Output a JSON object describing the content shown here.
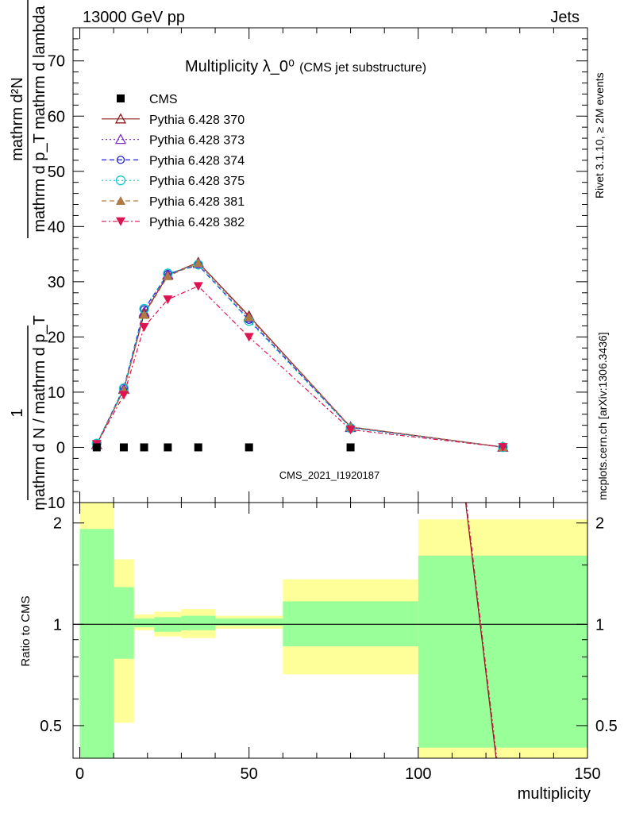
{
  "header": {
    "left": "13000 GeV pp",
    "right": "Jets"
  },
  "title": {
    "main": "Multiplicity λ_0⁰",
    "sub": "(CMS jet substructure)"
  },
  "watermark": {
    "analysis": "CMS_2021_I1920187",
    "rivet": "Rivet 3.1.10, ≥ 2M events",
    "mcplots": "mcplots.cern.ch [arXiv:1306.3436]"
  },
  "ylabel_main": {
    "numerator": "mathrm d²N",
    "denominator": "mathrm d p_T mathrm d lambda",
    "prefix_num": "1",
    "prefix_den": "mathrm d N / mathrm d p_T"
  },
  "ylabel_ratio": "Ratio to CMS",
  "xlabel": "multiplicity",
  "legend": [
    {
      "name": "CMS",
      "color": "#000000",
      "marker": "square-filled",
      "dash": "none"
    },
    {
      "name": "Pythia 6.428 370",
      "color": "#8b1a1a",
      "marker": "triangle-open",
      "dash": "solid"
    },
    {
      "name": "Pythia 6.428 373",
      "color": "#7b2fbe",
      "marker": "triangle-open",
      "dash": "dotted"
    },
    {
      "name": "Pythia 6.428 374",
      "color": "#1f1fd6",
      "marker": "circle-open",
      "dash": "dashed"
    },
    {
      "name": "Pythia 6.428 375",
      "color": "#14c8c8",
      "marker": "circle-open",
      "dash": "dotted"
    },
    {
      "name": "Pythia 6.428 381",
      "color": "#b07a45",
      "marker": "triangle-filled",
      "dash": "dashed"
    },
    {
      "name": "Pythia 6.428 382",
      "color": "#dc1450",
      "marker": "triangledown-filled",
      "dash": "dashdot"
    }
  ],
  "chart_data": [
    {
      "type": "line",
      "panel": "main",
      "xlim": [
        -2,
        150
      ],
      "ylim": [
        -10,
        76
      ],
      "yticks": [
        -10,
        0,
        10,
        20,
        30,
        40,
        50,
        60,
        70
      ],
      "grid": false,
      "legend_position": "top-left",
      "cms": {
        "x": [
          5,
          13,
          19,
          26,
          35,
          50,
          80
        ],
        "y": [
          0,
          0,
          0,
          0,
          0,
          0,
          0
        ]
      },
      "series": [
        {
          "name": "Pythia 6.428 370",
          "x": [
            5,
            13,
            19,
            26,
            35,
            50,
            80,
            125
          ],
          "y": [
            0.5,
            10.5,
            24.2,
            31.2,
            33.5,
            23.8,
            3.7,
            0.05
          ]
        },
        {
          "name": "Pythia 6.428 373",
          "x": [
            5,
            13,
            19,
            26,
            35,
            50,
            80,
            125
          ],
          "y": [
            0.5,
            10.6,
            24.5,
            31.3,
            33.3,
            23.5,
            3.6,
            0.05
          ]
        },
        {
          "name": "Pythia 6.428 374",
          "x": [
            5,
            13,
            19,
            26,
            35,
            50,
            80,
            125
          ],
          "y": [
            0.6,
            10.8,
            25.0,
            31.4,
            33.0,
            23.1,
            3.6,
            0.05
          ]
        },
        {
          "name": "Pythia 6.428 375",
          "x": [
            5,
            13,
            19,
            26,
            35,
            50,
            80,
            125
          ],
          "y": [
            0.7,
            10.7,
            25.1,
            31.5,
            33.1,
            22.9,
            3.5,
            0.05
          ]
        },
        {
          "name": "Pythia 6.428 381",
          "x": [
            5,
            13,
            19,
            26,
            35,
            50,
            80,
            125
          ],
          "y": [
            0.5,
            10.4,
            24.0,
            31.0,
            33.4,
            23.6,
            3.7,
            0.05
          ]
        },
        {
          "name": "Pythia 6.428 382",
          "x": [
            5,
            13,
            19,
            26,
            35,
            50,
            80,
            125
          ],
          "y": [
            0.6,
            9.5,
            21.8,
            26.8,
            29.2,
            20.0,
            3.2,
            0.05
          ]
        }
      ]
    },
    {
      "type": "line",
      "panel": "ratio",
      "xlim": [
        -2,
        150
      ],
      "ylim": [
        0.4,
        2.3
      ],
      "yscale": "log",
      "yticks": [
        0.5,
        1,
        2
      ],
      "xticks": [
        0,
        50,
        100,
        150
      ],
      "reference_line": 1,
      "bands": [
        {
          "x": [
            0,
            10
          ],
          "inner": [
            0.4,
            1.92
          ],
          "outer": [
            0.4,
            2.3
          ]
        },
        {
          "x": [
            10,
            16
          ],
          "inner": [
            0.79,
            1.29
          ],
          "outer": [
            0.51,
            1.56
          ]
        },
        {
          "x": [
            16,
            22
          ],
          "inner": [
            0.98,
            1.04
          ],
          "outer": [
            0.96,
            1.07
          ]
        },
        {
          "x": [
            22,
            30
          ],
          "inner": [
            0.95,
            1.05
          ],
          "outer": [
            0.92,
            1.09
          ]
        },
        {
          "x": [
            30,
            40
          ],
          "inner": [
            0.96,
            1.06
          ],
          "outer": [
            0.91,
            1.11
          ]
        },
        {
          "x": [
            40,
            60
          ],
          "inner": [
            0.99,
            1.04
          ],
          "outer": [
            0.97,
            1.06
          ]
        },
        {
          "x": [
            60,
            100
          ],
          "inner": [
            0.86,
            1.17
          ],
          "outer": [
            0.71,
            1.36
          ]
        },
        {
          "x": [
            100,
            150
          ],
          "inner": [
            0.43,
            1.6
          ],
          "outer": [
            0.4,
            2.05
          ]
        }
      ],
      "series": [
        {
          "name": "Pythia 6.428 370",
          "x": [
            114,
            123
          ],
          "y": [
            2.3,
            0.4
          ]
        },
        {
          "name": "Pythia 6.428 382",
          "x": [
            114.2,
            123.2
          ],
          "y": [
            2.3,
            0.4
          ]
        }
      ]
    }
  ],
  "colors": {
    "band_inner": "#99ff99",
    "band_outer": "#ffff99",
    "watermark": "#888888"
  }
}
